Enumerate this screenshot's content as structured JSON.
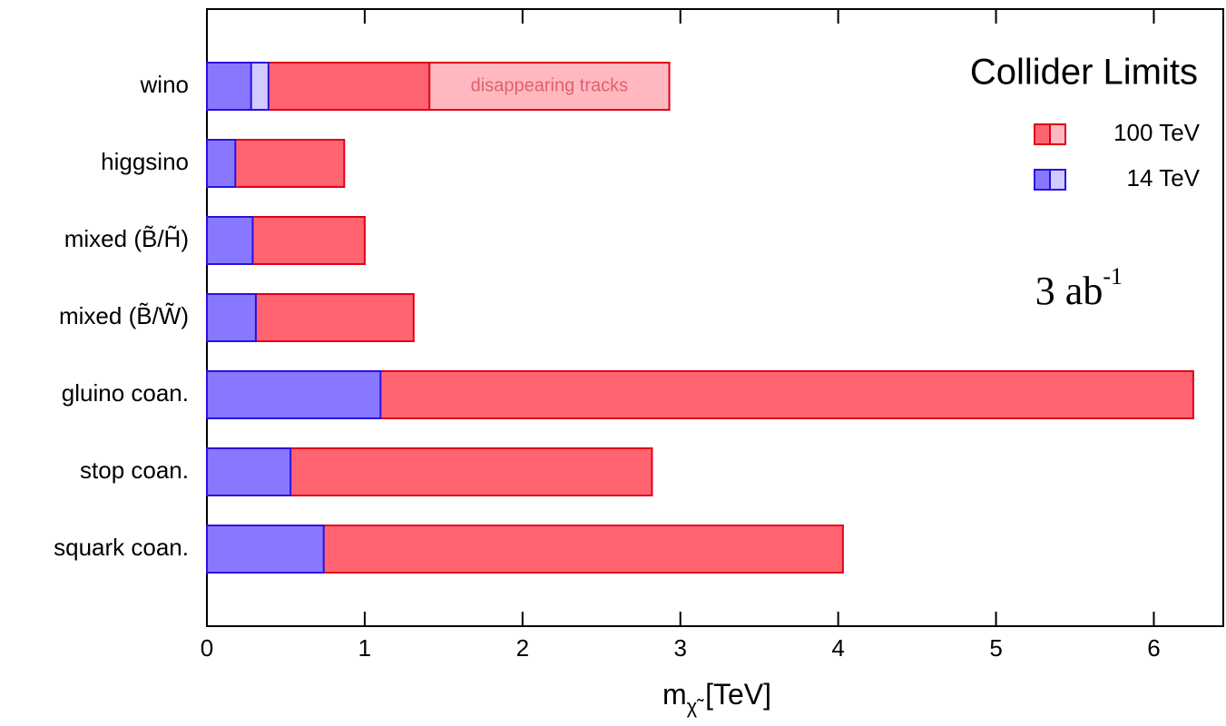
{
  "chart_data": {
    "type": "bar",
    "orientation": "horizontal",
    "title": "Collider Limits",
    "categories": [
      "wino",
      "higgsino",
      "mixed (B̃/H̃)",
      "mixed (B̃/W̃)",
      "gluino coan.",
      "stop coan.",
      "squark coan."
    ],
    "series": [
      {
        "name": "100 TeV",
        "color": "#ff6470",
        "stroke": "#e00018",
        "light_color": "#ffb8c0",
        "values": [
          1.41,
          0.87,
          1.0,
          1.31,
          6.25,
          2.82,
          4.03
        ],
        "extended_values": [
          2.93,
          null,
          null,
          null,
          null,
          null,
          null
        ]
      },
      {
        "name": "14 TeV",
        "color": "#8878ff",
        "stroke": "#2a10e0",
        "light_color": "#d0ccff",
        "values": [
          0.28,
          0.18,
          0.29,
          0.31,
          1.1,
          0.53,
          0.74
        ],
        "extended_values": [
          0.39,
          null,
          null,
          null,
          null,
          null,
          null
        ]
      }
    ],
    "annotation": "disappearing tracks",
    "luminosity": {
      "text": "3 ab",
      "sup": "-1"
    },
    "x_label": {
      "main": "m",
      "sub": "χ̃",
      "rest": " [TeV]"
    },
    "xlim": [
      0,
      6.44
    ],
    "xticks": [
      0,
      1,
      2,
      3,
      4,
      5,
      6
    ],
    "legend": "upper right"
  }
}
